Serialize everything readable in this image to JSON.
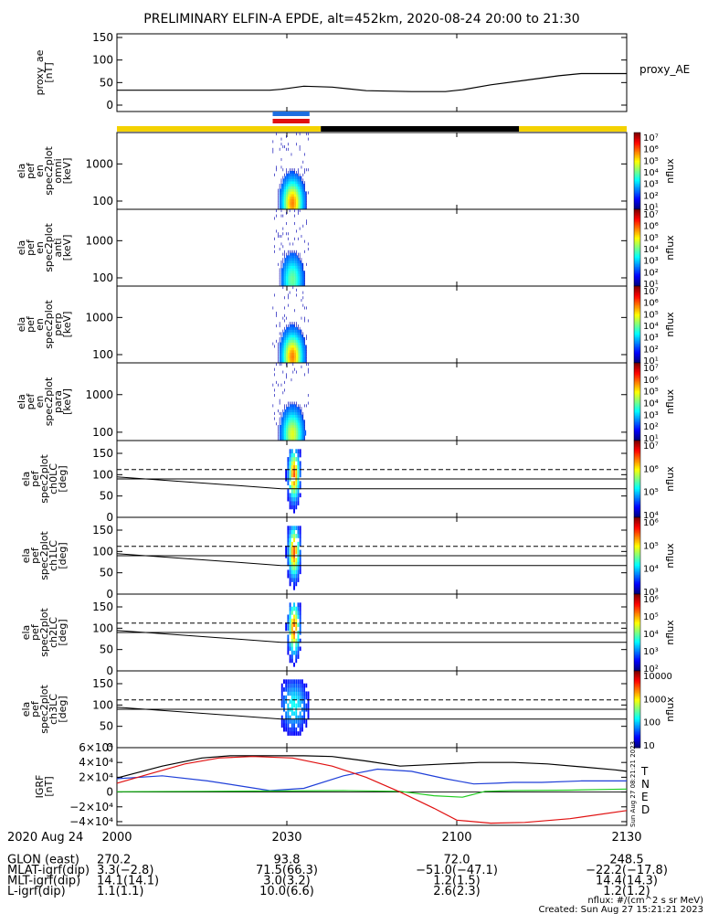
{
  "title": "PRELIMINARY ELFIN-A EPDE, alt=452km, 2020-08-24 20:00 to 21:30",
  "side_labels": {
    "ae": "proxy_AE",
    "nflux": "nflux"
  },
  "panels": [
    {
      "ylabel": [
        "proxy_ae",
        "[nT]"
      ],
      "ticks": [
        "150",
        "100",
        "50",
        "0"
      ]
    },
    {
      "ylabel": [
        "ela",
        "pef",
        "en",
        "spec2plot",
        "omni",
        "[keV]"
      ],
      "ticks": [
        "1000",
        "100"
      ],
      "cbar": [
        "10⁷",
        "10⁶",
        "10⁵",
        "10⁴",
        "10³",
        "10²",
        "10¹"
      ]
    },
    {
      "ylabel": [
        "ela",
        "pef",
        "en",
        "spec2plot",
        "anti",
        "[keV]"
      ],
      "ticks": [
        "1000",
        "100"
      ],
      "cbar": [
        "10⁷",
        "10⁶",
        "10⁵",
        "10⁴",
        "10³",
        "10²",
        "10¹"
      ]
    },
    {
      "ylabel": [
        "ela",
        "pef",
        "en",
        "spec2plot",
        "perp",
        "[keV]"
      ],
      "ticks": [
        "1000",
        "100"
      ],
      "cbar": [
        "10⁷",
        "10⁶",
        "10⁵",
        "10⁴",
        "10³",
        "10²",
        "10¹"
      ]
    },
    {
      "ylabel": [
        "ela",
        "pef",
        "en",
        "spec2plot",
        "para",
        "[keV]"
      ],
      "ticks": [
        "1000",
        "100"
      ],
      "cbar": [
        "10⁷",
        "10⁶",
        "10⁵",
        "10⁴",
        "10³",
        "10²",
        "10¹"
      ]
    },
    {
      "ylabel": [
        "ela",
        "pef",
        "spec2plot",
        "ch0LC",
        "[deg]"
      ],
      "ticks": [
        "150",
        "100",
        "50",
        "0"
      ],
      "cbar": [
        "10⁷",
        "10⁶",
        "10⁵",
        "10⁴"
      ]
    },
    {
      "ylabel": [
        "ela",
        "pef",
        "spec2plot",
        "ch1LC",
        "[deg]"
      ],
      "ticks": [
        "150",
        "100",
        "50",
        "0"
      ],
      "cbar": [
        "10⁶",
        "10⁵",
        "10⁴",
        "10³"
      ]
    },
    {
      "ylabel": [
        "ela",
        "pef",
        "spec2plot",
        "ch2LC",
        "[deg]"
      ],
      "ticks": [
        "150",
        "100",
        "50",
        "0"
      ],
      "cbar": [
        "10⁶",
        "10⁵",
        "10⁴",
        "10³",
        "10²"
      ]
    },
    {
      "ylabel": [
        "ela",
        "pef",
        "spec2plot",
        "ch3LC",
        "[deg]"
      ],
      "ticks": [
        "150",
        "100",
        "50",
        "0"
      ],
      "cbar": [
        "10000",
        "1000",
        "100",
        "10"
      ]
    },
    {
      "ylabel": [
        "IGRF",
        "[nT]"
      ],
      "ticks": [
        "6×10⁴",
        "4×10⁴",
        "2×10⁴",
        "0",
        "−2×10⁴",
        "−4×10⁴"
      ]
    }
  ],
  "igrf_legend": [
    {
      "label": "T",
      "color": "#000000"
    },
    {
      "label": "N",
      "color": "#1f3fd8"
    },
    {
      "label": "E",
      "color": "#22cc22"
    },
    {
      "label": "D",
      "color": "#e01010"
    }
  ],
  "x_ticks": [
    "2000",
    "2030",
    "2100",
    "2130"
  ],
  "ephemeris": {
    "rows": [
      {
        "label": "2020 Aug 24",
        "values": [
          "",
          "",
          "",
          ""
        ]
      },
      {
        "label": "GLON (east)",
        "values": [
          "270.2",
          "93.8",
          "72.0",
          "248.5"
        ]
      },
      {
        "label": "MLAT-igrf(dip)",
        "values": [
          "3.3(−2.8)",
          "71.5(66.3)",
          "−51.0(−47.1)",
          "−22.2(−17.8)"
        ]
      },
      {
        "label": "MLT-igrf(dip)",
        "values": [
          "14.1(14.1)",
          "3.0(3.2)",
          "1.2(1.5)",
          "14.4(14.3)"
        ]
      },
      {
        "label": "L-igrf(dip)",
        "values": [
          "1.1(1.1)",
          "10.0(6.6)",
          "2.6(2.3)",
          "1.2(1.2)"
        ]
      }
    ]
  },
  "footer": {
    "units": "nflux: #/(cm^2 s sr MeV)",
    "created": "Created: Sun Aug 27 15:21:21 2023",
    "vertical_stamp": "Sun Aug 27 08:21:21 2023"
  },
  "chart_data": {
    "type": "line",
    "title": "PRELIMINARY ELFIN-A EPDE, alt=452km, 2020-08-24 20:00 to 21:30",
    "xlim_minutes_after_2000": [
      0,
      90
    ],
    "proxy_ae": {
      "name": "proxy_AE",
      "ylim": [
        0,
        150
      ],
      "t": [
        0,
        20,
        27,
        29,
        33,
        38,
        44,
        52,
        58,
        61,
        66,
        72,
        78,
        82,
        90
      ],
      "y": [
        33,
        33,
        33,
        35,
        42,
        40,
        32,
        30,
        30,
        34,
        45,
        55,
        65,
        70,
        70
      ]
    },
    "flags": {
      "bar_colors": [
        "#f4d200",
        "#000000",
        "#f4d200"
      ],
      "bar_segments": [
        [
          0,
          36
        ],
        [
          36,
          71
        ],
        [
          71,
          90
        ]
      ],
      "science_marks": [
        {
          "start": 27.5,
          "end": 34,
          "colors": [
            "#1e6fe0",
            "#e01010"
          ]
        }
      ]
    },
    "energy_spectra": {
      "ylim_keV": [
        60,
        7000
      ],
      "yscale": "log",
      "t_range": [
        27.5,
        34
      ],
      "colorbar_range": [
        "10¹",
        "10⁷"
      ]
    },
    "loss_cone_lines": {
      "ylim_deg": [
        0,
        180
      ],
      "dashed_deg": 112,
      "solid_high_deg": 90,
      "solid_low_t": [
        0,
        29,
        33,
        90
      ],
      "solid_low_deg": [
        95,
        67,
        67,
        67
      ]
    },
    "igrf": {
      "ylim": [
        -45000,
        60000
      ],
      "series": [
        {
          "name": "T",
          "color": "#000000",
          "t": [
            0,
            8,
            15,
            20,
            25,
            33,
            38,
            44,
            50,
            58,
            64,
            70,
            76,
            82,
            88,
            90
          ],
          "y": [
            19000,
            35000,
            46000,
            49000,
            49000,
            49000,
            48000,
            42000,
            35000,
            38000,
            40000,
            40000,
            38000,
            34000,
            30000,
            28000
          ]
        },
        {
          "name": "N",
          "color": "#1f3fd8",
          "t": [
            0,
            8,
            16,
            22,
            27,
            33,
            40,
            46,
            52,
            58,
            63,
            67,
            70,
            75,
            82,
            90
          ],
          "y": [
            18000,
            22000,
            15000,
            8000,
            2000,
            5000,
            22000,
            31000,
            28000,
            18000,
            11000,
            12000,
            13000,
            13000,
            15000,
            15000
          ]
        },
        {
          "name": "E",
          "color": "#22cc22",
          "t": [
            0,
            15,
            30,
            40,
            50,
            56,
            61,
            65,
            70,
            80,
            90
          ],
          "y": [
            500,
            1000,
            1500,
            2000,
            1000,
            -5000,
            -7000,
            1000,
            2000,
            2500,
            4000
          ]
        },
        {
          "name": "D",
          "color": "#e01010",
          "t": [
            0,
            6,
            12,
            18,
            24,
            31,
            38,
            44,
            50,
            56,
            60,
            66,
            72,
            80,
            90
          ],
          "y": [
            12000,
            25000,
            38000,
            46000,
            48000,
            46000,
            35000,
            20000,
            0,
            -22000,
            -38000,
            -42000,
            -41000,
            -36000,
            -25000
          ]
        }
      ]
    }
  }
}
